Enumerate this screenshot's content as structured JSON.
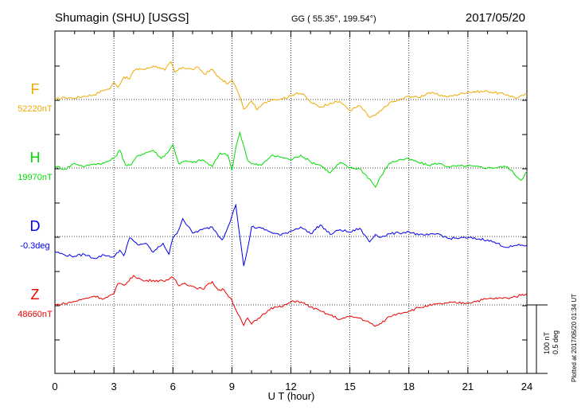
{
  "header": {
    "station": "Shumagin (SHU)  [USGS]",
    "coords": "GG ( 55.35°, 199.54°)",
    "date": "2017/05/20"
  },
  "footer": {
    "xlabel": "U T (hour)",
    "plotted": "Plotted at 2017/06/20 01:34 UT"
  },
  "scale_bar": {
    "line1": "100 nT",
    "line2": "0.5 deg"
  },
  "chart_data": {
    "type": "line",
    "title": "Shumagin (SHU)  [USGS]",
    "xlabel": "U T (hour)",
    "ylabel": "",
    "xlim": [
      0,
      24
    ],
    "xticks": [
      "0",
      "3",
      "6",
      "9",
      "12",
      "15",
      "18",
      "21",
      "24"
    ],
    "grid": true,
    "series_units": "offset from baseline (nT for F,H,Z; deg for D); scale 100 nT / 0.5 deg",
    "series": [
      {
        "name": "F",
        "baseline_label": "52220nT",
        "color": "#f0a800",
        "x": [
          0,
          0.5,
          1,
          1.5,
          2,
          2.5,
          2.8,
          3,
          3.2,
          3.5,
          3.8,
          4,
          4.3,
          4.6,
          5,
          5.3,
          5.6,
          5.9,
          6.1,
          6.5,
          7,
          7.3,
          7.6,
          8,
          8.4,
          8.8,
          9,
          9.2,
          9.4,
          9.6,
          9.8,
          10,
          10.3,
          10.6,
          11,
          11.5,
          12,
          12.3,
          12.6,
          13,
          13.5,
          14,
          14.5,
          15,
          15.5,
          16,
          16.3,
          16.6,
          17,
          17.5,
          18,
          18.5,
          19,
          20,
          21,
          22,
          23,
          23.5,
          24
        ],
        "values": [
          0,
          3,
          2,
          5,
          7,
          14,
          16,
          25,
          18,
          33,
          30,
          42,
          45,
          44,
          49,
          47,
          43,
          55,
          40,
          47,
          44,
          47,
          37,
          44,
          30,
          23,
          28,
          18,
          4,
          -14,
          -9,
          -2,
          -15,
          -6,
          0,
          1,
          5,
          10,
          8,
          -4,
          -11,
          -5,
          -3,
          -16,
          -9,
          -26,
          -23,
          -16,
          -5,
          -1,
          5,
          3,
          10,
          4,
          11,
          12,
          7,
          2,
          8
        ]
      },
      {
        "name": "H",
        "baseline_label": "19970nT",
        "color": "#00dd00",
        "x": [
          0,
          0.5,
          1,
          1.5,
          2,
          2.5,
          3,
          3.3,
          3.6,
          3.9,
          4.2,
          4.6,
          5,
          5.4,
          5.8,
          6,
          6.3,
          6.6,
          7,
          7.5,
          8,
          8.4,
          8.8,
          9,
          9.2,
          9.4,
          9.6,
          9.8,
          10,
          10.5,
          11,
          11.5,
          12,
          12.5,
          13,
          13.5,
          14,
          14.5,
          15,
          15.5,
          16,
          16.3,
          16.6,
          17,
          17.5,
          18,
          18.5,
          19,
          19.5,
          20,
          21,
          22,
          23,
          23.7,
          24
        ],
        "values": [
          3,
          -2,
          7,
          2,
          6,
          7,
          14,
          26,
          4,
          5,
          18,
          22,
          26,
          14,
          25,
          34,
          6,
          10,
          8,
          12,
          2,
          22,
          19,
          -3,
          30,
          52,
          33,
          11,
          6,
          4,
          18,
          16,
          12,
          19,
          9,
          4,
          -7,
          8,
          0,
          -1,
          -16,
          -28,
          -11,
          7,
          12,
          13,
          8,
          4,
          7,
          2,
          3,
          0,
          2,
          -18,
          -5
        ]
      },
      {
        "name": "D",
        "baseline_label": "-0.3deg",
        "color": "#0000ee",
        "x": [
          0,
          0.5,
          1,
          1.5,
          2,
          2.5,
          3,
          3.3,
          3.5,
          3.8,
          4.2,
          4.6,
          5,
          5.5,
          5.8,
          6,
          6.2,
          6.5,
          7,
          7.5,
          8,
          8.5,
          8.8,
          9,
          9.2,
          9.4,
          9.6,
          9.8,
          10,
          10.5,
          11,
          11.5,
          12,
          12.5,
          13,
          13.5,
          14,
          14.5,
          15,
          15.5,
          16,
          16.3,
          16.6,
          17,
          17.5,
          18,
          18.5,
          19,
          19.5,
          20,
          21,
          22,
          23,
          23.5,
          24
        ],
        "values": [
          -22,
          -27,
          -29,
          -26,
          -32,
          -27,
          -30,
          -20,
          -28,
          -2,
          -12,
          -10,
          -23,
          -10,
          -26,
          -2,
          4,
          26,
          5,
          10,
          14,
          -5,
          14,
          30,
          46,
          0,
          -43,
          -18,
          14,
          12,
          6,
          2,
          8,
          14,
          4,
          17,
          3,
          10,
          6,
          12,
          -8,
          3,
          -1,
          4,
          5,
          7,
          2,
          2,
          4,
          -3,
          -2,
          -5,
          -16,
          -13,
          -13
        ]
      },
      {
        "name": "Z",
        "baseline_label": "48660nT",
        "color": "#ee0000",
        "x": [
          0,
          0.5,
          1,
          1.5,
          2,
          2.5,
          3,
          3.2,
          3.6,
          4,
          4.5,
          5,
          5.5,
          6,
          6.3,
          6.6,
          7,
          7.5,
          8,
          8.3,
          8.6,
          9,
          9.3,
          9.6,
          9.8,
          10,
          10.5,
          11,
          11.5,
          12,
          12.3,
          12.6,
          13,
          13.5,
          14,
          14.5,
          15,
          15.5,
          16,
          16.3,
          16.6,
          17,
          17.5,
          18,
          18.5,
          19,
          20,
          21,
          22,
          23,
          23.7,
          24
        ],
        "values": [
          0,
          2,
          5,
          9,
          13,
          9,
          16,
          31,
          30,
          43,
          35,
          36,
          35,
          40,
          28,
          32,
          27,
          23,
          34,
          22,
          22,
          7,
          -13,
          -30,
          -19,
          -28,
          -16,
          -4,
          -3,
          4,
          6,
          3,
          -3,
          -9,
          -15,
          -21,
          -17,
          -19,
          -26,
          -31,
          -27,
          -17,
          -12,
          -9,
          -4,
          -1,
          3,
          3,
          9,
          10,
          14,
          17
        ]
      }
    ]
  }
}
